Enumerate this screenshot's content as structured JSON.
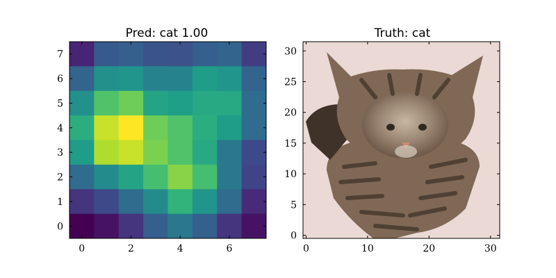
{
  "chart_data": [
    {
      "type": "heatmap",
      "title": "Pred: cat 1.00",
      "colormap": "viridis",
      "x_ticks": [
        0,
        2,
        4,
        6
      ],
      "y_ticks": [
        0,
        1,
        2,
        3,
        4,
        5,
        6,
        7
      ],
      "xlim": [
        -0.5,
        7.5
      ],
      "ylim": [
        7.5,
        -0.5
      ],
      "grid": false,
      "values": [
        [
          0.1,
          0.28,
          0.3,
          0.26,
          0.25,
          0.3,
          0.32,
          0.18
        ],
        [
          0.32,
          0.5,
          0.52,
          0.45,
          0.45,
          0.55,
          0.52,
          0.32
        ],
        [
          0.5,
          0.72,
          0.78,
          0.58,
          0.56,
          0.6,
          0.6,
          0.35
        ],
        [
          0.62,
          0.92,
          1.0,
          0.78,
          0.72,
          0.62,
          0.55,
          0.35
        ],
        [
          0.55,
          0.88,
          0.92,
          0.8,
          0.72,
          0.6,
          0.4,
          0.22
        ],
        [
          0.35,
          0.48,
          0.58,
          0.7,
          0.82,
          0.7,
          0.4,
          0.2
        ],
        [
          0.15,
          0.22,
          0.35,
          0.48,
          0.65,
          0.52,
          0.35,
          0.12
        ],
        [
          0.0,
          0.05,
          0.15,
          0.3,
          0.4,
          0.3,
          0.15,
          0.05
        ]
      ]
    },
    {
      "type": "image",
      "title": "Truth: cat",
      "x_ticks": [
        0,
        10,
        20,
        30
      ],
      "y_ticks": [
        0,
        5,
        10,
        15,
        20,
        25,
        30
      ],
      "xlim": [
        -0.5,
        31.5
      ],
      "ylim": [
        31.5,
        -0.5
      ],
      "grid": false,
      "background_color": "#ead9d4",
      "fur_color": "#7f6855",
      "dark_fur_color": "#3f3329",
      "light_fur_color": "#c4b49e",
      "nose_color": "#c98d72"
    }
  ]
}
